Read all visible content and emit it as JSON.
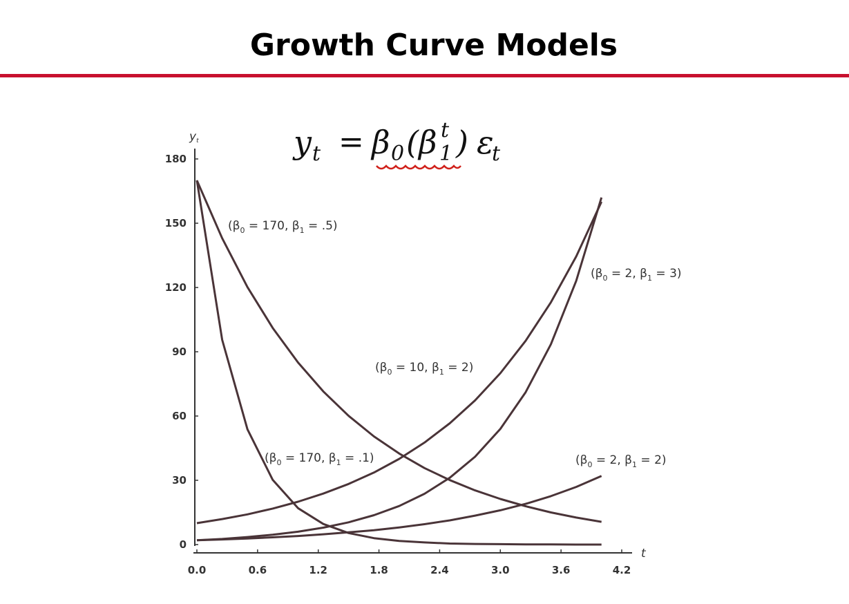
{
  "chart_data": {
    "type": "line",
    "title": "Growth Curve Models",
    "formula": {
      "y": "y",
      "y_sub": "t",
      "eq": "=",
      "b0": "β",
      "b0_sub": "0",
      "open": "(",
      "b1": "β",
      "b1_sub": "1",
      "b1_sup": "t",
      "close": ")",
      "eps": "ε",
      "eps_sub": "t"
    },
    "y_label": {
      "text": "y",
      "sub": "t"
    },
    "x_label": "t",
    "x": [
      0,
      0.25,
      0.5,
      0.75,
      1,
      1.25,
      1.5,
      1.75,
      2,
      2.25,
      2.5,
      2.75,
      3,
      3.25,
      3.5,
      3.75,
      4
    ],
    "xlim": [
      0,
      4.2
    ],
    "xticks": [
      {
        "value": 0,
        "label": "0.0"
      },
      0.6,
      1.2,
      1.8,
      2.4,
      {
        "value": 3,
        "label": "3.0"
      },
      3.6,
      4.2
    ],
    "ylim": [
      0,
      180
    ],
    "yticks": [
      0,
      30,
      60,
      90,
      120,
      150,
      180
    ],
    "series": [
      {
        "label": [
          "(β",
          "0",
          " = 170, β",
          "1",
          " = .5)"
        ],
        "color": "#4a3438",
        "values": [
          170,
          143,
          120.2,
          101.1,
          85,
          71.5,
          60.1,
          50.5,
          42.5,
          35.7,
          30.1,
          25.3,
          21.3,
          17.9,
          15,
          12.6,
          10.6
        ]
      },
      {
        "label": [
          "(β",
          "0",
          " = 170, β",
          "1",
          " = .1)"
        ],
        "color": "#4a3438",
        "values": [
          170,
          95.6,
          53.8,
          30.2,
          17,
          9.6,
          5.4,
          3,
          1.7,
          1,
          0.5,
          0.3,
          0.2,
          0.1,
          0.1,
          0,
          0
        ]
      },
      {
        "label": [
          "(β",
          "0",
          " = 10, β",
          "1",
          " = 2)"
        ],
        "color": "#4a3438",
        "values": [
          10,
          11.9,
          14.1,
          16.8,
          20,
          23.8,
          28.3,
          33.6,
          40,
          47.6,
          56.6,
          67.3,
          80,
          95.1,
          113.1,
          134.5,
          160
        ]
      },
      {
        "label": [
          "(β",
          "0",
          " = 2, β",
          "1",
          " = 3)"
        ],
        "color": "#4a3438",
        "values": [
          2,
          2.6,
          3.5,
          4.6,
          6,
          7.9,
          10.4,
          13.7,
          18,
          23.7,
          31.2,
          41,
          54,
          71.1,
          93.5,
          123.1,
          162
        ]
      },
      {
        "label": [
          "(β",
          "0",
          " = 2, β",
          "1",
          " = 2)"
        ],
        "color": "#4a3438",
        "values": [
          2,
          2.4,
          2.8,
          3.4,
          4,
          4.8,
          5.7,
          6.7,
          8,
          9.5,
          11.3,
          13.5,
          16,
          19,
          22.6,
          26.9,
          32
        ]
      }
    ]
  }
}
